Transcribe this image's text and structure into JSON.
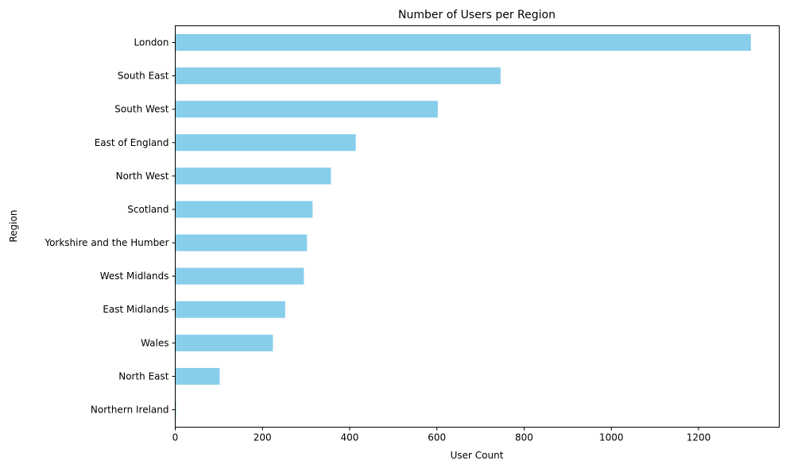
{
  "chart_data": {
    "type": "bar",
    "orientation": "horizontal",
    "title": "Number of Users per Region",
    "xlabel": "User Count",
    "ylabel": "Region",
    "categories": [
      "London",
      "South East",
      "South West",
      "East of England",
      "North West",
      "Scotland",
      "Yorkshire and the Humber",
      "West Midlands",
      "East Midlands",
      "Wales",
      "North East",
      "Northern Ireland"
    ],
    "values": [
      1320,
      746,
      602,
      414,
      357,
      315,
      302,
      295,
      252,
      224,
      102,
      2
    ],
    "xlim": [
      0,
      1385
    ],
    "xticks": [
      0,
      200,
      400,
      600,
      800,
      1000,
      1200
    ],
    "bar_color": "#87ceeb",
    "grid": false,
    "legend": "none"
  }
}
